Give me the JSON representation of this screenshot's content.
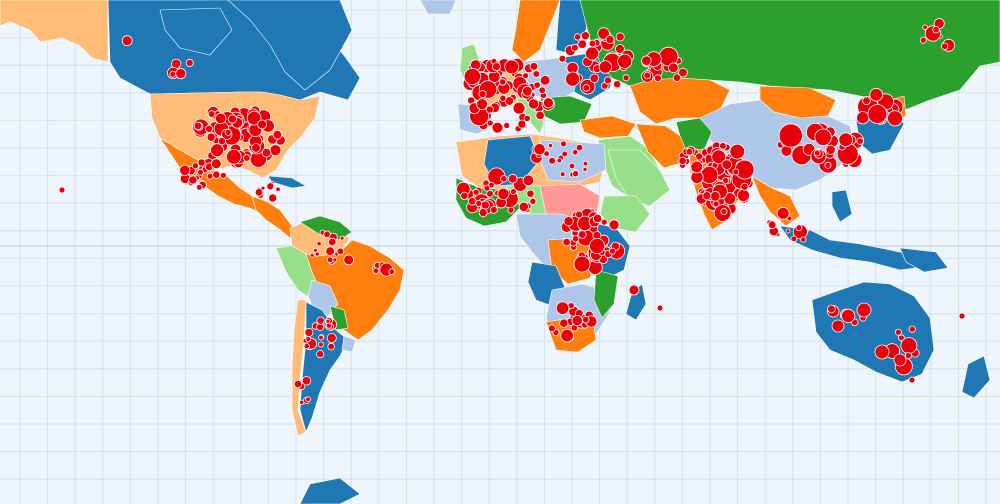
{
  "map": {
    "projection": "mercator",
    "ocean_color": "#eef5fb",
    "graticule_color": "#d5e1ec",
    "equator_color": "#c9d6e2",
    "country_outline_color": "#ffffff",
    "palette": {
      "blue": "#1f77b4",
      "light_blue": "#aec7e8",
      "orange": "#ff7f0e",
      "peach": "#ffbb78",
      "green": "#2ca02c",
      "light_green": "#98df8a",
      "pink": "#ff9896"
    },
    "marker": {
      "fill": "#e8000b",
      "stroke": "#ffffff",
      "shape": "circle"
    }
  }
}
